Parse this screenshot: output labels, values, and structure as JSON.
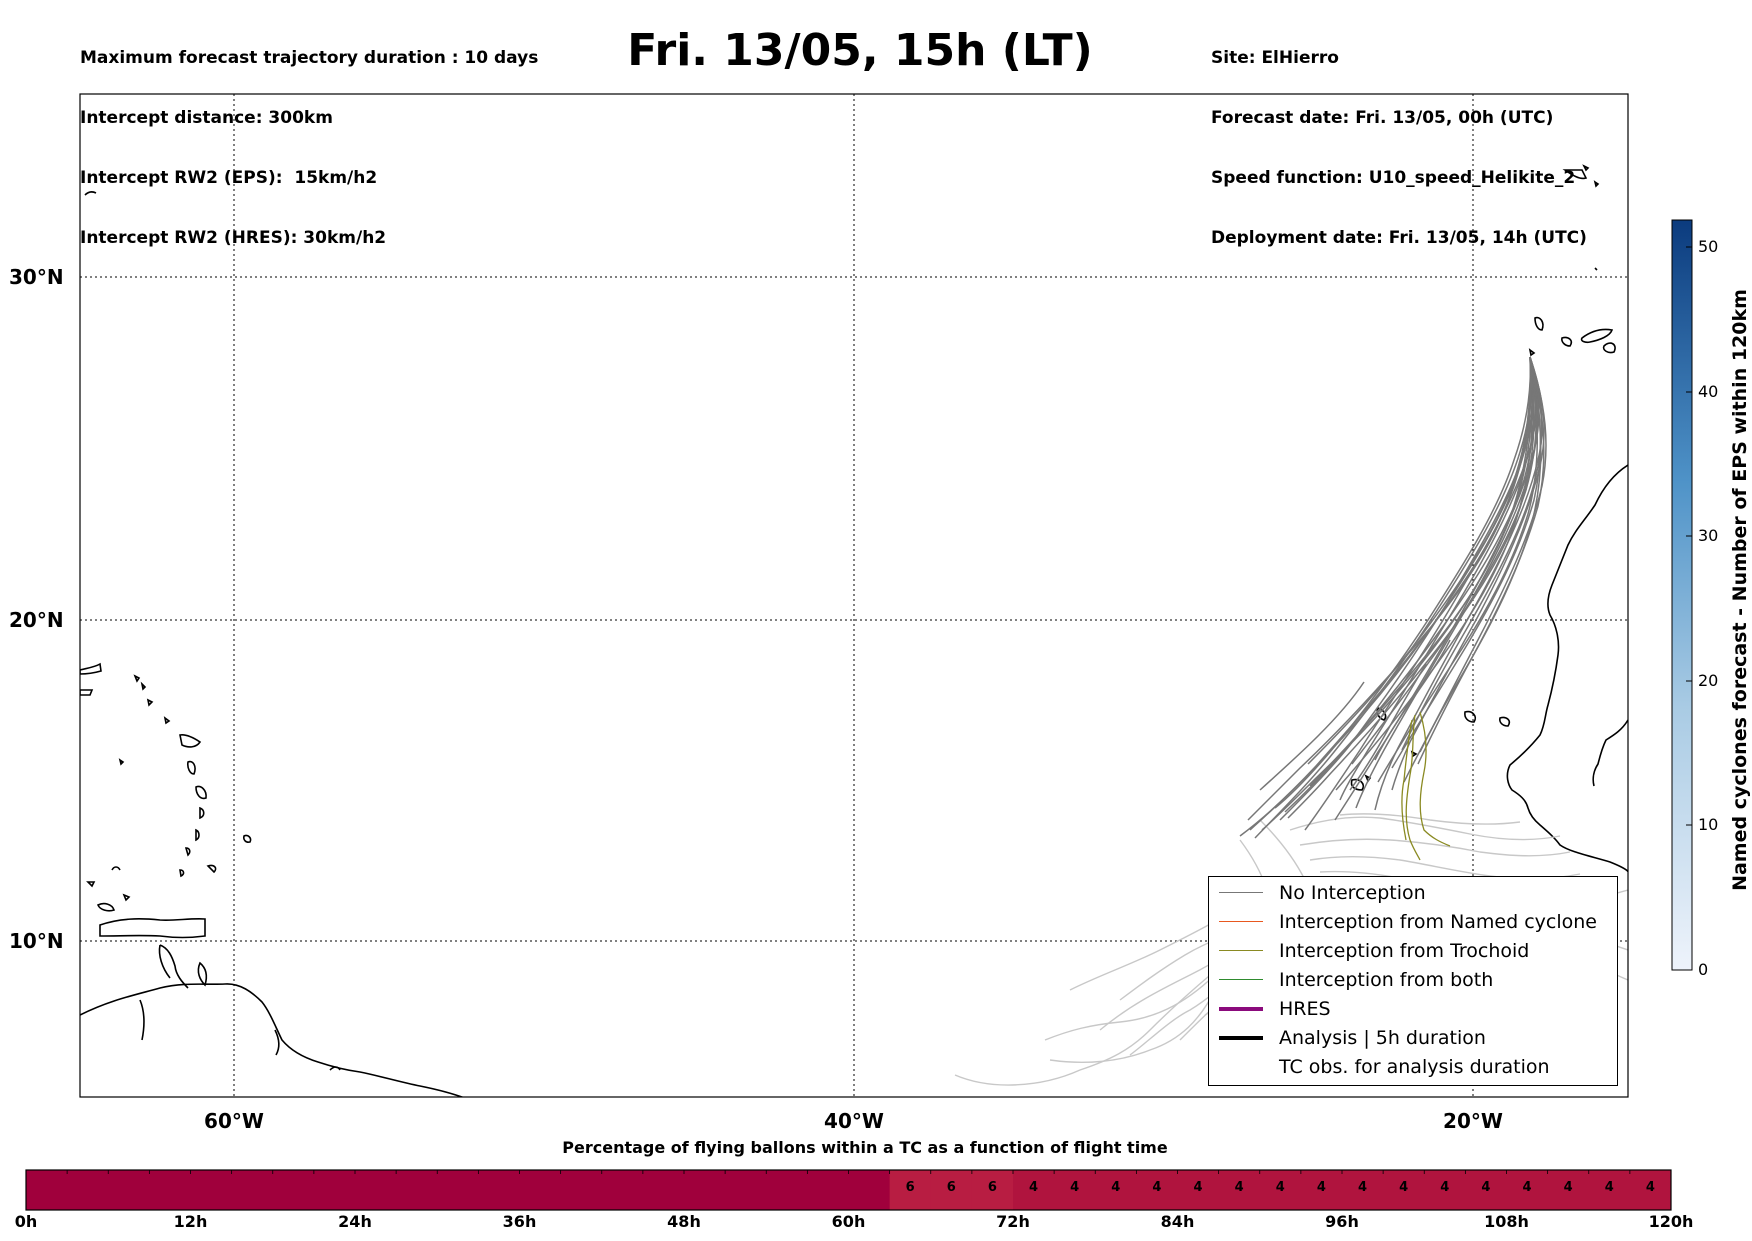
{
  "header": {
    "left_lines": [
      "Maximum forecast trajectory duration : 10 days",
      "Intercept distance: 300km",
      "Intercept RW2 (EPS):  15km/h2",
      "Intercept RW2 (HRES): 30km/h2"
    ],
    "title": "Fri. 13/05, 15h (LT)",
    "right_lines": [
      "Site: ElHierro",
      "Forecast date: Fri. 13/05, 00h (UTC)",
      "Speed function: U10_speed_Helikite_2",
      "Deployment date: Fri. 13/05, 14h (UTC)"
    ]
  },
  "map": {
    "lat_labels": [
      "30°N",
      "20°N",
      "10°N"
    ],
    "lon_labels": [
      "60°W",
      "40°W",
      "20°W"
    ],
    "gridlines": true
  },
  "legend": {
    "items": [
      {
        "label": "No Interception",
        "color": "#777777",
        "style": "thin"
      },
      {
        "label": "Interception from Named cyclone",
        "color": "#e8581f",
        "style": "thin"
      },
      {
        "label": "Interception from Trochoid",
        "color": "#8a8a22",
        "style": "thin"
      },
      {
        "label": "Interception from both",
        "color": "#2e8b2e",
        "style": "thin"
      },
      {
        "label": "HRES",
        "color": "#8b0a7c",
        "style": "thick"
      },
      {
        "label": "Analysis | 5h duration",
        "color": "#000000",
        "style": "thick"
      },
      {
        "label": "TC obs. for analysis duration",
        "color": "#000000",
        "style": "symbol"
      }
    ]
  },
  "colorbar": {
    "label": "Named cyclones forecast - Number of EPS within 120km",
    "ticks": [
      "50",
      "40",
      "30",
      "20",
      "10",
      "0"
    ],
    "color_low": "#eef3fb",
    "color_high": "#0b3b7e"
  },
  "time_bar": {
    "caption": "Percentage of flying ballons within a TC as a function of flight time",
    "hour_ticks": [
      "0h",
      "12h",
      "24h",
      "36h",
      "48h",
      "60h",
      "72h",
      "84h",
      "96h",
      "108h",
      "120h"
    ],
    "cell_values": [
      "",
      "",
      "",
      "",
      "",
      "",
      "",
      "",
      "",
      "",
      "",
      "",
      "",
      "",
      "",
      "",
      "",
      "",
      "",
      "",
      "",
      "6",
      "6",
      "6",
      "4",
      "4",
      "4",
      "4",
      "4",
      "4",
      "4",
      "4",
      "4",
      "4",
      "4",
      "4",
      "4",
      "4",
      "4",
      "4"
    ],
    "color_dark": "#a0003c",
    "color_6": "#b81d42",
    "color_4": "#b0143e"
  }
}
